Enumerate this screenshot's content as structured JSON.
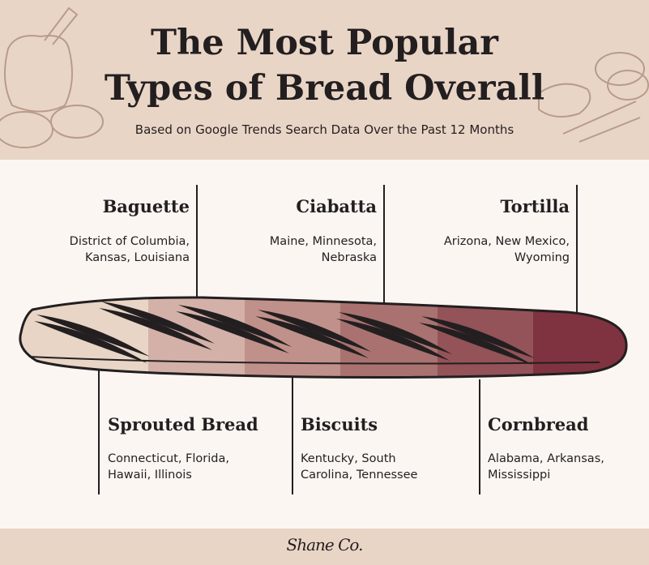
{
  "header": {
    "title_line1": "The Most Popular",
    "title_line2": "Types of Bread Overall",
    "subtitle": "Based on Google Trends Search Data Over the Past 12 Months"
  },
  "colors": {
    "header_bg": "#e9d5c6",
    "page_bg": "#fbf6f2",
    "gradient_segments": [
      "#e8d5c6",
      "#d3b1a8",
      "#c0918a",
      "#a97270",
      "#945358",
      "#7f3340"
    ]
  },
  "breads_top": [
    {
      "name": "Baguette",
      "states_line1": "District of Columbia,",
      "states_line2": "Kansas, Louisiana"
    },
    {
      "name": "Ciabatta",
      "states_line1": "Maine, Minnesota,",
      "states_line2": "Nebraska"
    },
    {
      "name": "Tortilla",
      "states_line1": "Arizona, New Mexico,",
      "states_line2": "Wyoming"
    }
  ],
  "breads_bottom": [
    {
      "name": "Sprouted Bread",
      "states_line1": "Connecticut, Florida,",
      "states_line2": "Hawaii, Illinois"
    },
    {
      "name": "Biscuits",
      "states_line1": "Kentucky, South",
      "states_line2": "Carolina, Tennessee"
    },
    {
      "name": "Cornbread",
      "states_line1": "Alabama, Arkansas,",
      "states_line2": "Mississippi"
    }
  ],
  "footer": {
    "logo": "Shane Co."
  }
}
